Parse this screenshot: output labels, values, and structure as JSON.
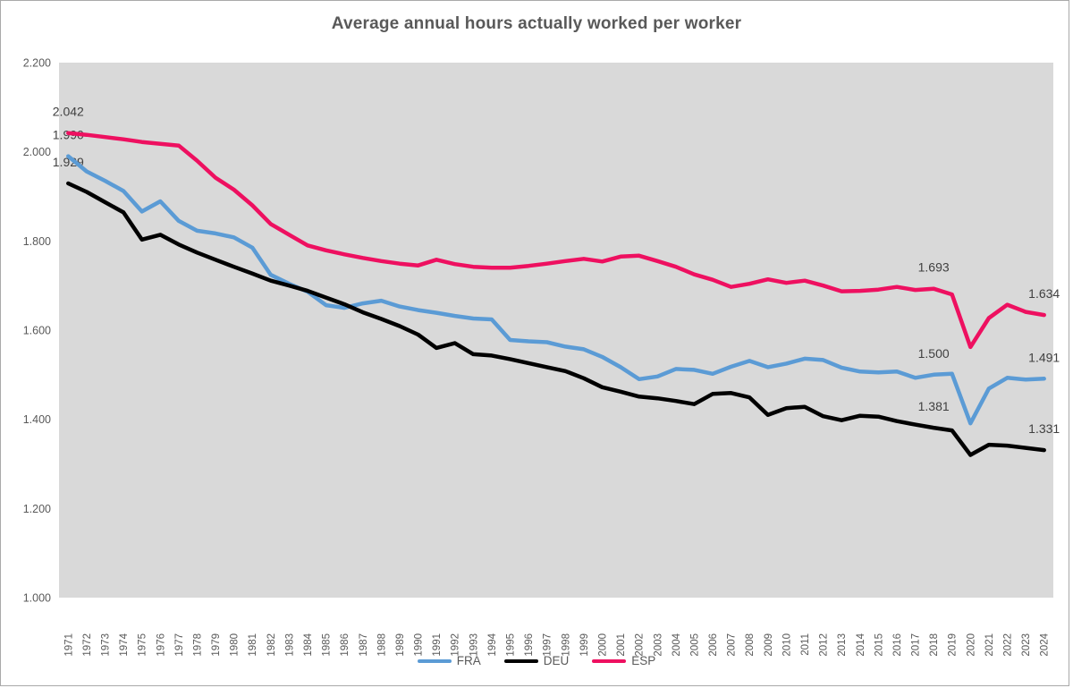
{
  "chart": {
    "frame_border_color": "#a9a9a9",
    "plot_background": "#d9d9d9",
    "title_color": "#595959",
    "axis_label_color": "#595959",
    "data_label_color": "#404040"
  },
  "chart_data": {
    "type": "line",
    "title": "Average annual hours actually worked per worker",
    "x": [
      1971,
      1972,
      1973,
      1974,
      1975,
      1976,
      1977,
      1978,
      1979,
      1980,
      1981,
      1982,
      1983,
      1984,
      1985,
      1986,
      1987,
      1988,
      1989,
      1990,
      1991,
      1992,
      1993,
      1994,
      1995,
      1996,
      1997,
      1998,
      1999,
      2000,
      2001,
      2002,
      2003,
      2004,
      2005,
      2006,
      2007,
      2008,
      2009,
      2010,
      2011,
      2012,
      2013,
      2014,
      2015,
      2016,
      2017,
      2018,
      2019,
      2020,
      2021,
      2022,
      2023,
      2024
    ],
    "xlabel": "",
    "ylabel": "",
    "ylim": [
      1000,
      2200
    ],
    "grid": false,
    "legend_position": "bottom",
    "y_ticks": [
      {
        "label": "2.200",
        "value": 2200
      },
      {
        "label": "2.000",
        "value": 2000
      },
      {
        "label": "1.800",
        "value": 1800
      },
      {
        "label": "1.600",
        "value": 1600
      },
      {
        "label": "1.400",
        "value": 1400
      },
      {
        "label": "1.200",
        "value": 1200
      },
      {
        "label": "1.000",
        "value": 1000
      }
    ],
    "series": [
      {
        "name": "FRA",
        "color": "#5B9BD5",
        "values": [
          1990,
          1956,
          1935,
          1912,
          1866,
          1889,
          1845,
          1823,
          1817,
          1808,
          1785,
          1724,
          1704,
          1686,
          1656,
          1650,
          1660,
          1666,
          1653,
          1645,
          1639,
          1632,
          1626,
          1624,
          1578,
          1575,
          1573,
          1563,
          1557,
          1540,
          1517,
          1490,
          1496,
          1513,
          1511,
          1502,
          1518,
          1531,
          1517,
          1525,
          1536,
          1533,
          1516,
          1507,
          1505,
          1507,
          1493,
          1500,
          1502,
          1391,
          1469,
          1493,
          1489,
          1491
        ]
      },
      {
        "name": "DEU",
        "color": "#000000",
        "values": [
          1929,
          1910,
          1887,
          1864,
          1803,
          1814,
          1792,
          1774,
          1758,
          1742,
          1727,
          1711,
          1700,
          1688,
          1673,
          1658,
          1640,
          1625,
          1609,
          1590,
          1560,
          1571,
          1546,
          1543,
          1535,
          1526,
          1517,
          1508,
          1492,
          1472,
          1462,
          1451,
          1447,
          1441,
          1434,
          1457,
          1459,
          1449,
          1410,
          1425,
          1428,
          1407,
          1398,
          1408,
          1406,
          1396,
          1388,
          1381,
          1375,
          1320,
          1343,
          1341,
          1336,
          1331
        ]
      },
      {
        "name": "ESP",
        "color": "#EE1060",
        "values": [
          2042,
          2038,
          2033,
          2028,
          2022,
          2018,
          2014,
          1980,
          1942,
          1915,
          1880,
          1838,
          1814,
          1790,
          1779,
          1770,
          1762,
          1755,
          1749,
          1745,
          1758,
          1748,
          1742,
          1740,
          1740,
          1744,
          1749,
          1755,
          1760,
          1754,
          1765,
          1767,
          1755,
          1742,
          1725,
          1713,
          1697,
          1704,
          1714,
          1706,
          1711,
          1700,
          1687,
          1688,
          1691,
          1697,
          1690,
          1693,
          1680,
          1562,
          1627,
          1657,
          1641,
          1634
        ]
      }
    ],
    "annotations": [
      {
        "series": "ESP",
        "year": 1971,
        "text": "2.042"
      },
      {
        "series": "FRA",
        "year": 1971,
        "text": "1.990"
      },
      {
        "series": "DEU",
        "year": 1971,
        "text": "1.929"
      },
      {
        "series": "ESP",
        "year": 2018,
        "text": "1.693"
      },
      {
        "series": "FRA",
        "year": 2018,
        "text": "1.500"
      },
      {
        "series": "DEU",
        "year": 2018,
        "text": "1.381"
      },
      {
        "series": "ESP",
        "year": 2024,
        "text": "1.634"
      },
      {
        "series": "FRA",
        "year": 2024,
        "text": "1.491"
      },
      {
        "series": "DEU",
        "year": 2024,
        "text": "1.331"
      }
    ]
  }
}
